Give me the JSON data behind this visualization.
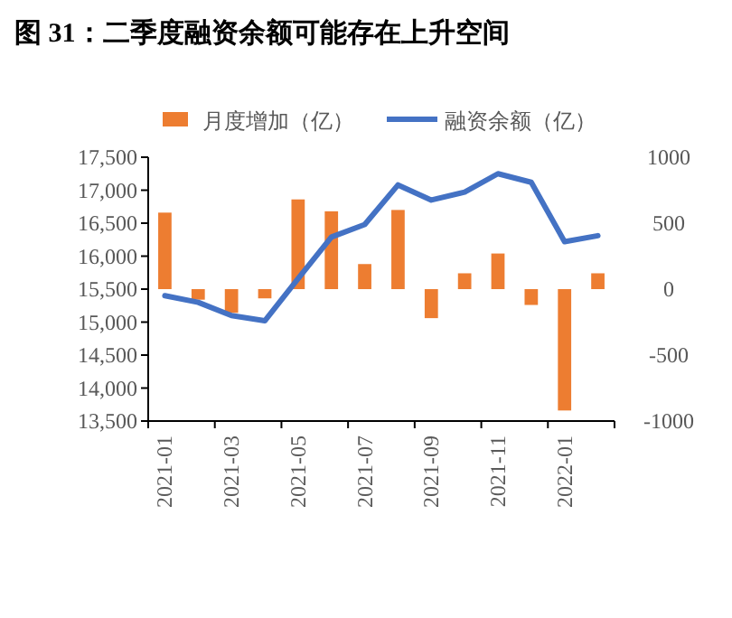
{
  "chart_data": {
    "type": "bar",
    "title": "图 31：二季度融资余额可能存在上升空间",
    "categories": [
      "2021-01",
      null,
      "2021-03",
      null,
      "2021-05",
      null,
      "2021-07",
      null,
      "2021-09",
      null,
      "2021-11",
      null,
      "2022-01",
      null
    ],
    "series": [
      {
        "name": "月度增加（亿）",
        "axis": "y2",
        "color": "#ed7d31",
        "values": [
          580,
          -80,
          -180,
          -70,
          680,
          590,
          190,
          600,
          -220,
          120,
          270,
          -120,
          -920,
          120
        ]
      },
      {
        "name": "融资余额（亿）",
        "type": "line",
        "axis": "y",
        "color": "#4472c4",
        "values": [
          15400,
          15300,
          15100,
          15020,
          15660,
          16290,
          16480,
          17080,
          16850,
          16970,
          17250,
          17120,
          16220,
          16310
        ]
      }
    ],
    "ylim": [
      13500,
      17500
    ],
    "yticks": [
      {
        "value": 13500,
        "label": "13,500"
      },
      {
        "value": 14000,
        "label": "14,000"
      },
      {
        "value": 14500,
        "label": "14,500"
      },
      {
        "value": 15000,
        "label": "15,000"
      },
      {
        "value": 15500,
        "label": "15,500"
      },
      {
        "value": 16000,
        "label": "16,000"
      },
      {
        "value": 16500,
        "label": "16,500"
      },
      {
        "value": 17000,
        "label": "17,000"
      },
      {
        "value": 17500,
        "label": "17,500"
      }
    ],
    "y2lim": [
      -1000,
      1000
    ],
    "y2ticks": [
      -1000,
      -500,
      0,
      500,
      1000
    ],
    "legend": "top",
    "grid": false
  }
}
